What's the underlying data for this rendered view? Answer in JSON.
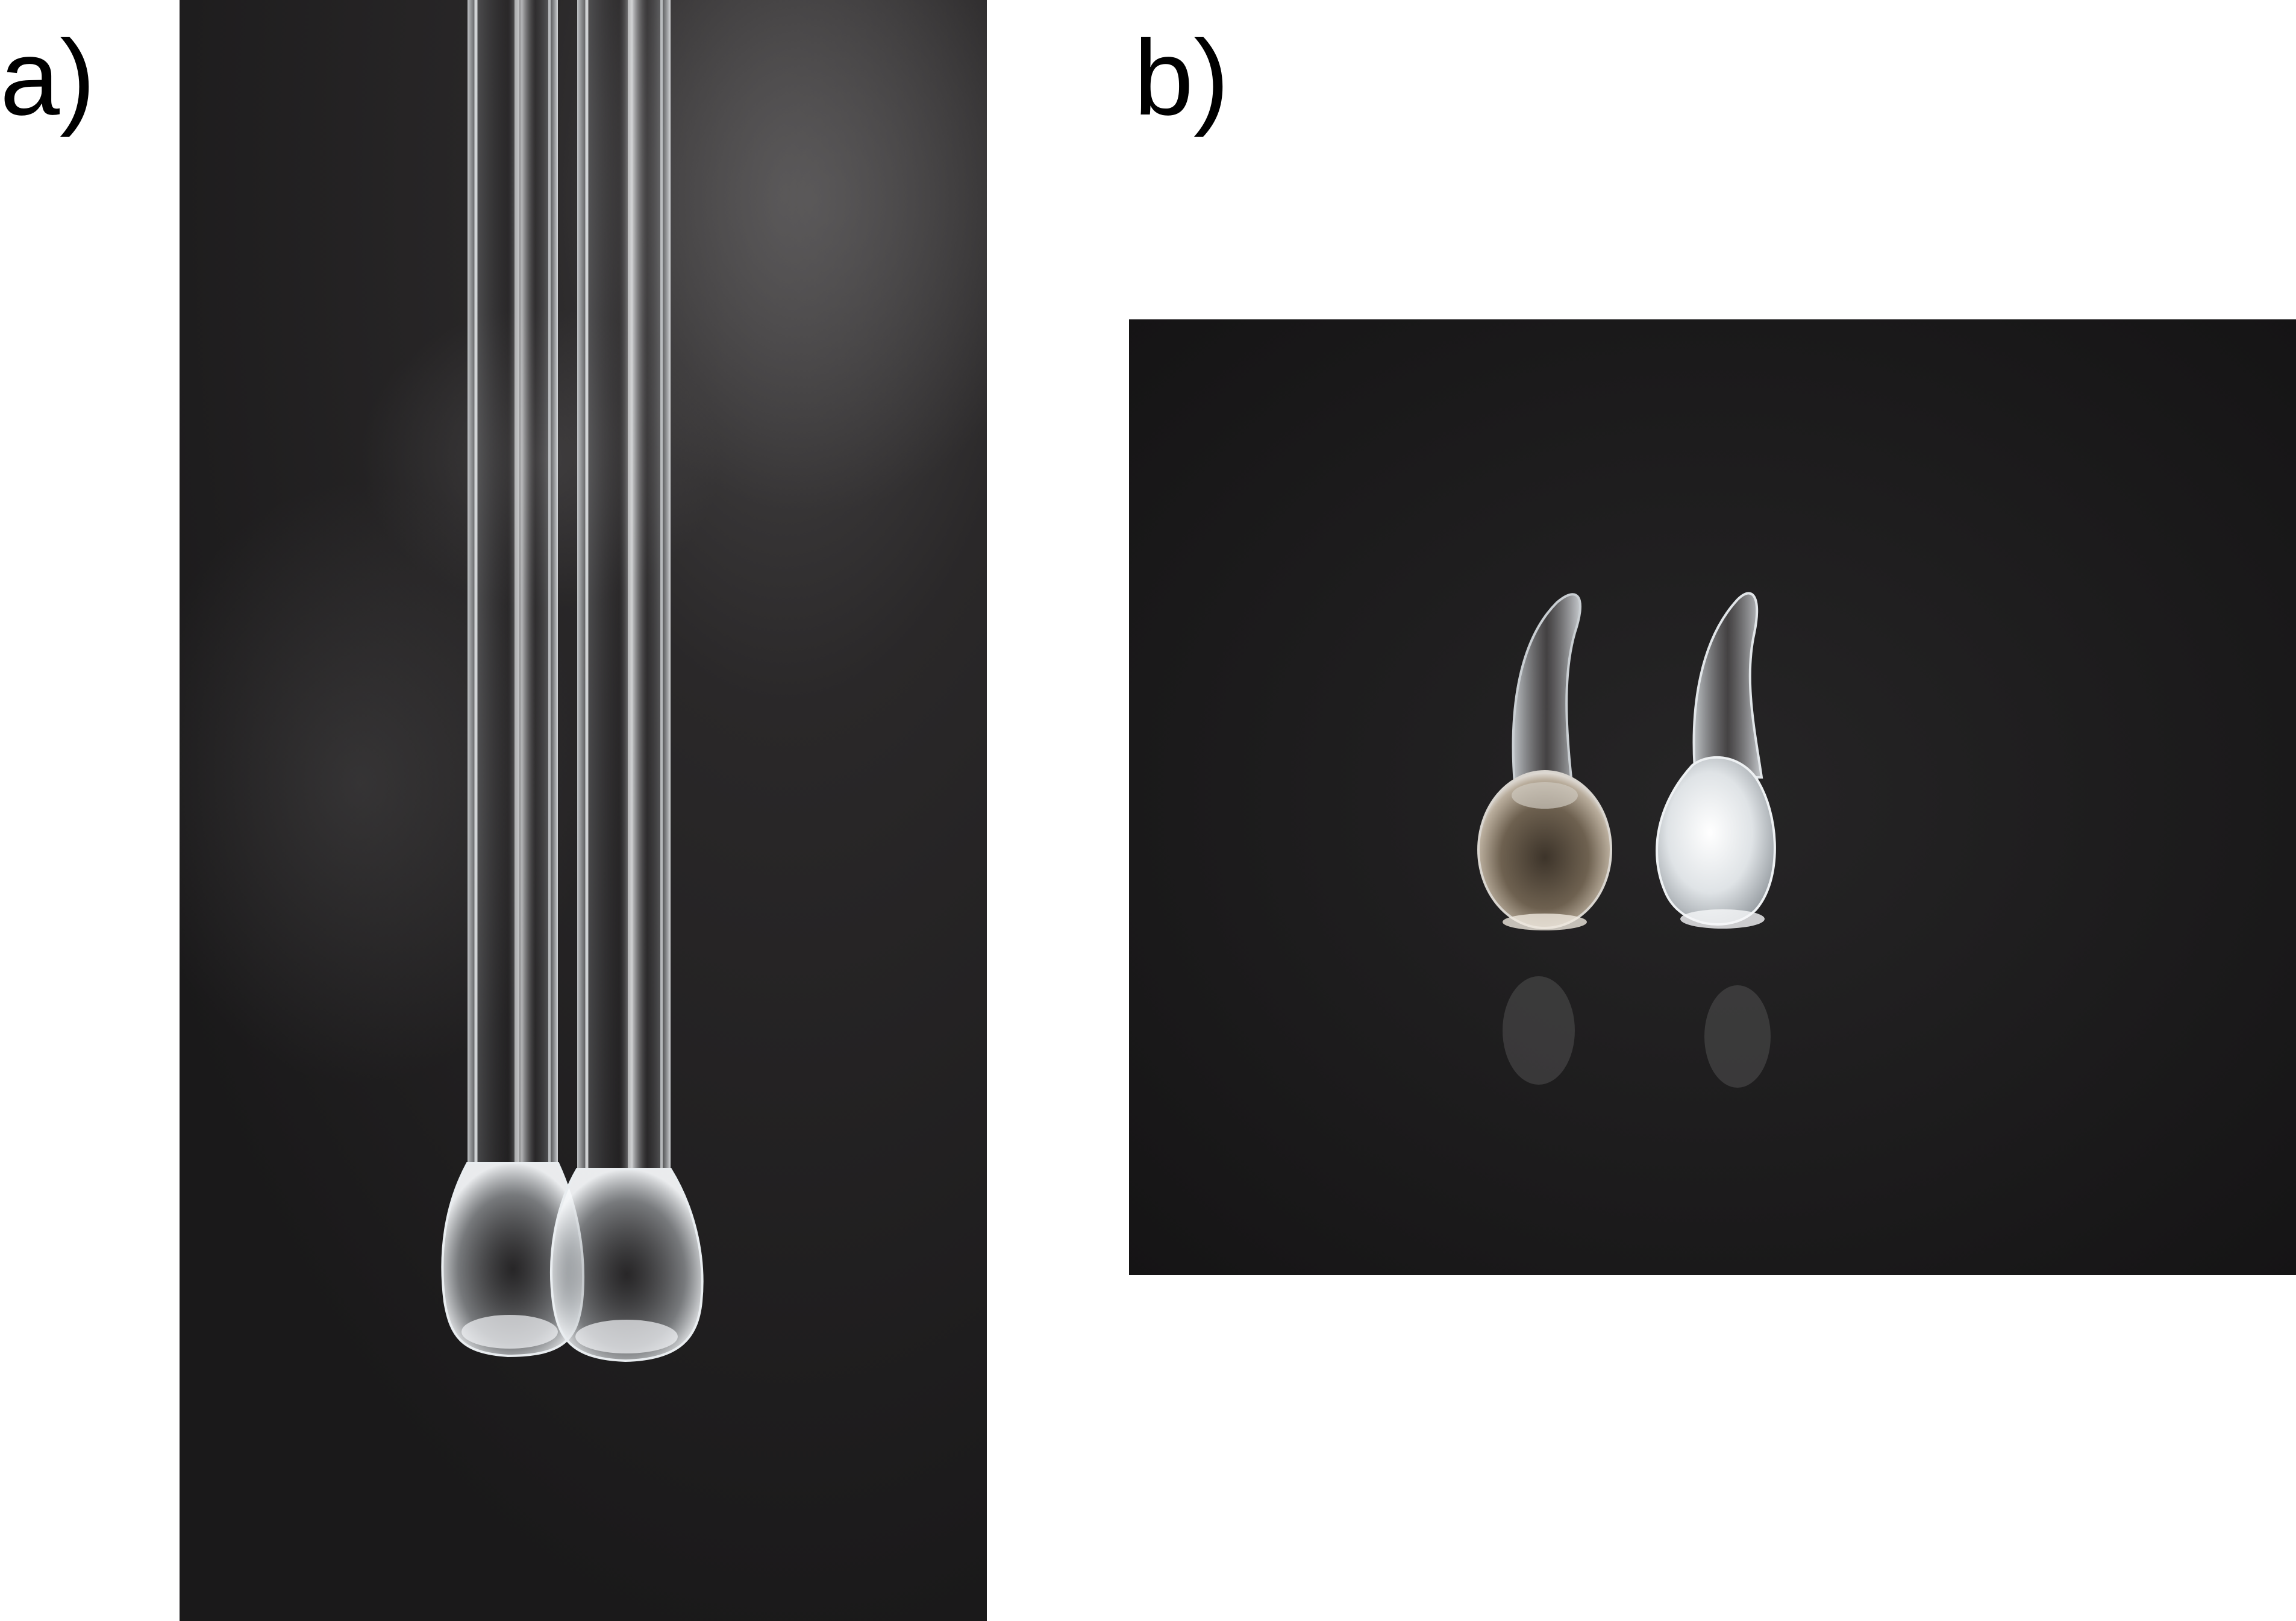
{
  "figure": {
    "panel_a": {
      "label": "a)",
      "subject": "two-glass-tubes-with-bulb-ends-icon"
    },
    "panel_b": {
      "label": "b)",
      "subject": "two-sealed-glass-ampoules-icon"
    }
  },
  "colors": {
    "background": "#ffffff",
    "label_text": "#000000",
    "bench_surface": "#1e1d1e",
    "glass_highlight": "#e8eef2",
    "tinted_ampoule": "#6e6150",
    "frosted_ampoule": "#dfe3e6"
  }
}
